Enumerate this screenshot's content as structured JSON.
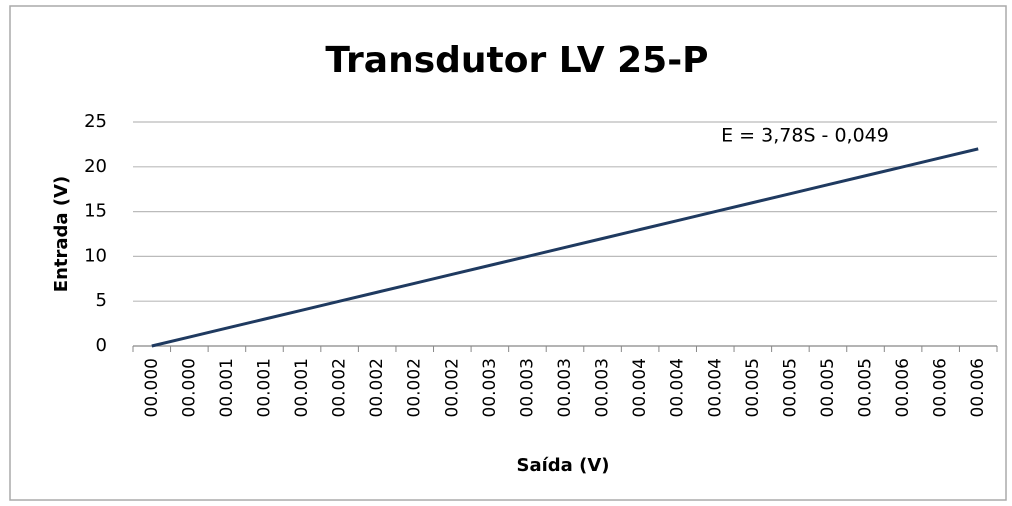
{
  "chart_data": {
    "type": "line",
    "title": "Transdutor LV 25-P",
    "annotation": "E = 3,78S - 0,049",
    "x_label": "Saída (V)",
    "y_label": "Entrada (V)",
    "categories": [
      "00.000",
      "00.000",
      "00.001",
      "00.001",
      "00.001",
      "00.002",
      "00.002",
      "00.002",
      "00.002",
      "00.003",
      "00.003",
      "00.003",
      "00.003",
      "00.004",
      "00.004",
      "00.004",
      "00.005",
      "00.005",
      "00.005",
      "00.005",
      "00.006",
      "00.006",
      "00.006"
    ],
    "series": [
      {
        "color": "#1f3a60",
        "values": [
          0,
          1,
          2,
          3,
          4,
          5,
          6,
          7,
          8,
          9,
          10,
          11,
          12,
          13,
          14,
          15,
          16,
          17,
          18,
          19,
          20,
          21,
          22
        ]
      }
    ],
    "ylim": [
      0,
      25
    ],
    "yticks": [
      0,
      5,
      10,
      15,
      20,
      25
    ],
    "grid": true
  }
}
